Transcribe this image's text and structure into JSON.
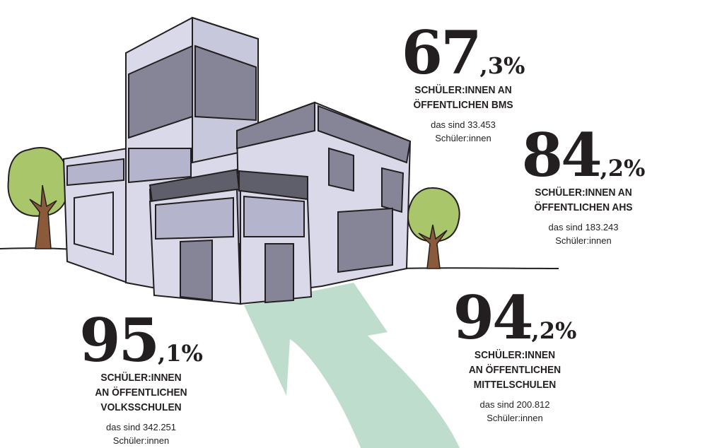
{
  "colors": {
    "text": "#231f20",
    "arrow": "#bfddcd",
    "tree": "#a9c76a",
    "trunk": "#8a5a3a",
    "building_light": "#d9d9ea",
    "building_mid": "#b4b4cc",
    "building_dark": "#858597"
  },
  "stats": [
    {
      "int": "67",
      "dec": ",3%",
      "label": [
        "SCHÜLER:INNEN AN",
        "ÖFFENTLICHEN BMS"
      ],
      "sub": [
        "das sind 33.453",
        "Schüler:innen"
      ]
    },
    {
      "int": "84",
      "dec": ",2%",
      "label": [
        "SCHÜLER:INNEN AN",
        "ÖFFENTLICHEN AHS"
      ],
      "sub": [
        "das sind 183.243",
        "Schüler:innen"
      ]
    },
    {
      "int": "94",
      "dec": ",2%",
      "label": [
        "SCHÜLER:INNEN",
        "AN ÖFFENTLICHEN",
        "MITTELSCHULEN"
      ],
      "sub": [
        "das sind 200.812",
        "Schüler:innen"
      ]
    },
    {
      "int": "95",
      "dec": ",1%",
      "label": [
        "SCHÜLER:INNEN",
        "AN ÖFFENTLICHEN",
        "VOLKSSCHULEN"
      ],
      "sub": [
        "das sind 342.251",
        "Schüler:innen"
      ]
    }
  ]
}
